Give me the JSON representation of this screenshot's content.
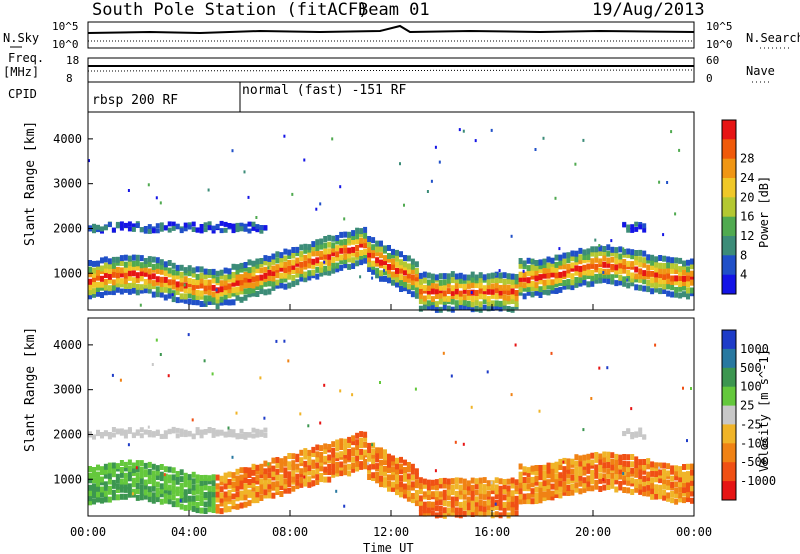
{
  "header": {
    "station": "South Pole Station (fitACF)",
    "beam": "Beam 01",
    "date": "19/Aug/2013"
  },
  "side_labels": {
    "nsky": "N.Sky",
    "nsearch": "N.Search",
    "freq": "Freq.",
    "freq_unit": "[MHz]",
    "nave": "Nave",
    "cpid": "CPID"
  },
  "strip_ticks": {
    "nsky_top": "10^5",
    "nsky_bottom": "10^0",
    "nsearch_top": "10^5",
    "nsearch_bottom": "10^0",
    "freq_top": "18",
    "freq_bottom": "8",
    "nave_top": "60",
    "nave_bottom": "0"
  },
  "cpid_segments": [
    {
      "label": "rbsp 200 RF",
      "start_hour": 0
    },
    {
      "label": "normal (fast) -151 RF",
      "start_hour": 6
    }
  ],
  "chart_data": [
    {
      "type": "heatmap",
      "name": "Power",
      "ylabel": "Slant Range [km]",
      "y_ticks": [
        "1000",
        "2000",
        "3000",
        "4000"
      ],
      "ylim": [
        180,
        4600
      ],
      "xlim": [
        0,
        24
      ],
      "colorbar_label": "Power [dB]",
      "colorbar_ticks": [
        "4",
        "8",
        "12",
        "16",
        "20",
        "24",
        "28"
      ],
      "colors": [
        "#1414e6",
        "#2050c8",
        "#3c8c78",
        "#50aa50",
        "#b4c832",
        "#f0c828",
        "#f09614",
        "#f05a0a",
        "#e61414"
      ]
    },
    {
      "type": "heatmap",
      "name": "Velocity",
      "ylabel": "Slant Range [km]",
      "y_ticks": [
        "1000",
        "2000",
        "3000",
        "4000"
      ],
      "ylim": [
        180,
        4600
      ],
      "xlim": [
        0,
        24
      ],
      "xlabel": "Time UT",
      "x_ticks": [
        "00:00",
        "04:00",
        "08:00",
        "12:00",
        "16:00",
        "20:00",
        "00:00"
      ],
      "colorbar_label": "Velocity [m s^-1]",
      "colorbar_ticks": [
        "1000",
        "500",
        "100",
        "25",
        "-25",
        "-100",
        "-500",
        "-1000"
      ],
      "colors": [
        "#1e3cc8",
        "#2878a0",
        "#3c9650",
        "#64c83c",
        "#c8c8c8",
        "#f0b428",
        "#f08214",
        "#f05014",
        "#e61414"
      ]
    }
  ]
}
